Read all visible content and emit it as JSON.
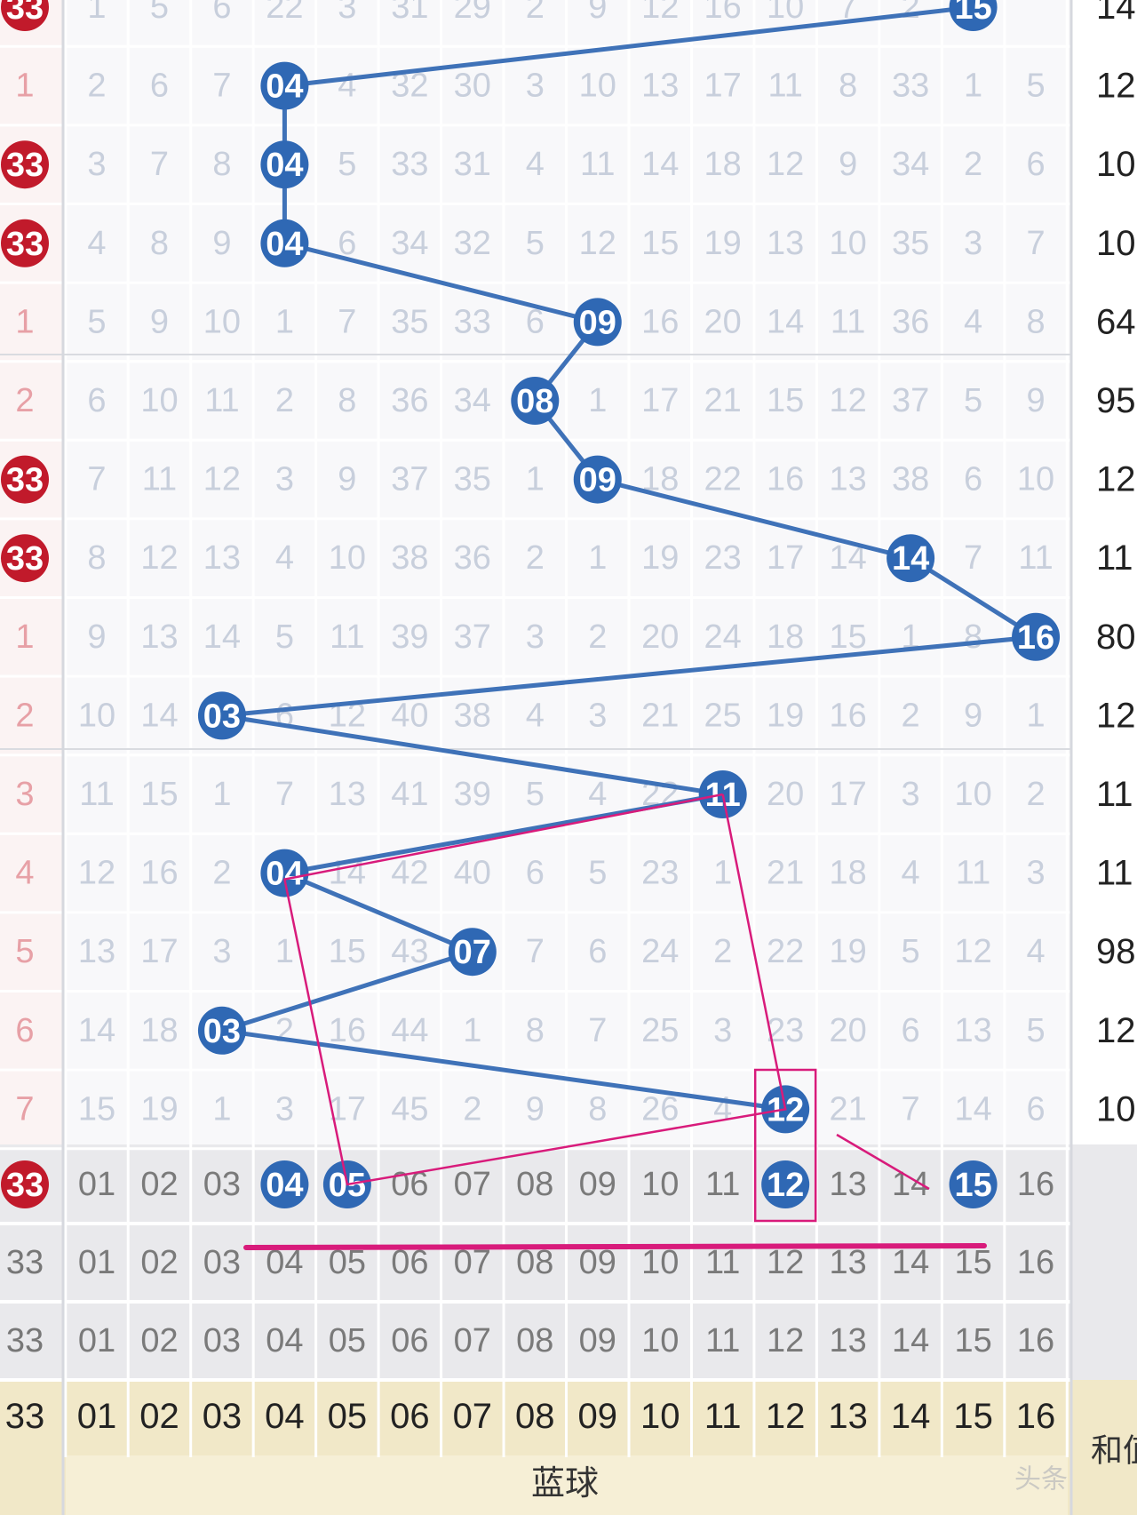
{
  "chart_data": {
    "type": "table",
    "title": "",
    "subtitle": "",
    "colors": {
      "blue_ball": "#2f68b4",
      "red_ball": "#c11a2b",
      "trend_line": "#3f72b8",
      "annotation": "#d81b7b",
      "miss_text": "#c8cfdc",
      "row_number": "#333333"
    },
    "columns": [
      "01",
      "02",
      "03",
      "04",
      "05",
      "06",
      "07",
      "08",
      "09",
      "10",
      "11",
      "12",
      "13",
      "14",
      "15",
      "16"
    ],
    "rows": [
      {
        "left": "33",
        "left_ball": true,
        "miss": [
          "1",
          "5",
          "6",
          "22",
          "3",
          "31",
          "29",
          "2",
          "9",
          "12",
          "16",
          "10",
          "7",
          "2",
          "",
          ""
        ],
        "hit": 15,
        "sum": "14"
      },
      {
        "left": "1",
        "left_ball": false,
        "miss": [
          "2",
          "6",
          "7",
          "",
          "4",
          "32",
          "30",
          "3",
          "10",
          "13",
          "17",
          "11",
          "8",
          "33",
          "1",
          "5"
        ],
        "hit": 4,
        "sum": "12"
      },
      {
        "left": "33",
        "left_ball": true,
        "miss": [
          "3",
          "7",
          "8",
          "",
          "5",
          "33",
          "31",
          "4",
          "11",
          "14",
          "18",
          "12",
          "9",
          "34",
          "2",
          "6"
        ],
        "hit": 4,
        "sum": "10"
      },
      {
        "left": "33",
        "left_ball": true,
        "miss": [
          "4",
          "8",
          "9",
          "",
          "6",
          "34",
          "32",
          "5",
          "12",
          "15",
          "19",
          "13",
          "10",
          "35",
          "3",
          "7"
        ],
        "hit": 4,
        "sum": "10"
      },
      {
        "left": "1",
        "left_ball": false,
        "miss": [
          "5",
          "9",
          "10",
          "1",
          "7",
          "35",
          "33",
          "6",
          "",
          "16",
          "20",
          "14",
          "11",
          "36",
          "4",
          "8"
        ],
        "hit": 9,
        "sum": "64"
      },
      {
        "left": "2",
        "left_ball": false,
        "miss": [
          "6",
          "10",
          "11",
          "2",
          "8",
          "36",
          "34",
          "",
          "1",
          "17",
          "21",
          "15",
          "12",
          "37",
          "5",
          "9"
        ],
        "hit": 8,
        "sum": "95"
      },
      {
        "left": "33",
        "left_ball": true,
        "miss": [
          "7",
          "11",
          "12",
          "3",
          "9",
          "37",
          "35",
          "1",
          "",
          "18",
          "22",
          "16",
          "13",
          "38",
          "6",
          "10"
        ],
        "hit": 9,
        "sum": "12"
      },
      {
        "left": "33",
        "left_ball": true,
        "miss": [
          "8",
          "12",
          "13",
          "4",
          "10",
          "38",
          "36",
          "2",
          "1",
          "19",
          "23",
          "17",
          "14",
          "",
          "7",
          "11"
        ],
        "hit": 14,
        "sum": "11"
      },
      {
        "left": "1",
        "left_ball": false,
        "miss": [
          "9",
          "13",
          "14",
          "5",
          "11",
          "39",
          "37",
          "3",
          "2",
          "20",
          "24",
          "18",
          "15",
          "1",
          "8",
          ""
        ],
        "hit": 16,
        "sum": "80"
      },
      {
        "left": "2",
        "left_ball": false,
        "miss": [
          "10",
          "14",
          "",
          "6",
          "12",
          "40",
          "38",
          "4",
          "3",
          "21",
          "25",
          "19",
          "16",
          "2",
          "9",
          "1"
        ],
        "hit": 3,
        "sum": "12"
      },
      {
        "left": "3",
        "left_ball": false,
        "miss": [
          "11",
          "15",
          "1",
          "7",
          "13",
          "41",
          "39",
          "5",
          "4",
          "22",
          "",
          "20",
          "17",
          "3",
          "10",
          "2"
        ],
        "hit": 11,
        "sum": "11"
      },
      {
        "left": "4",
        "left_ball": false,
        "miss": [
          "12",
          "16",
          "2",
          "",
          "14",
          "42",
          "40",
          "6",
          "5",
          "23",
          "1",
          "21",
          "18",
          "4",
          "11",
          "3"
        ],
        "hit": 4,
        "sum": "11"
      },
      {
        "left": "5",
        "left_ball": false,
        "miss": [
          "13",
          "17",
          "3",
          "1",
          "15",
          "43",
          "",
          "7",
          "6",
          "24",
          "2",
          "22",
          "19",
          "5",
          "12",
          "4"
        ],
        "hit": 7,
        "sum": "98"
      },
      {
        "left": "6",
        "left_ball": false,
        "miss": [
          "14",
          "18",
          "",
          "2",
          "16",
          "44",
          "1",
          "8",
          "7",
          "25",
          "3",
          "23",
          "20",
          "6",
          "13",
          "5"
        ],
        "hit": 3,
        "sum": "12"
      },
      {
        "left": "7",
        "left_ball": false,
        "miss": [
          "15",
          "19",
          "1",
          "3",
          "17",
          "45",
          "2",
          "9",
          "8",
          "26",
          "4",
          "",
          "21",
          "7",
          "14",
          "6"
        ],
        "hit": 12,
        "sum": "10"
      }
    ],
    "forecast_rows": [
      {
        "left": "33",
        "left_ball": true,
        "cells": [
          "01",
          "02",
          "03",
          "04",
          "05",
          "06",
          "07",
          "08",
          "09",
          "10",
          "11",
          "12",
          "13",
          "14",
          "15",
          "16"
        ],
        "selected": [
          4,
          5,
          12,
          15
        ]
      },
      {
        "left": "33",
        "left_ball": false,
        "cells": [
          "01",
          "02",
          "03",
          "04",
          "05",
          "06",
          "07",
          "08",
          "09",
          "10",
          "11",
          "12",
          "13",
          "14",
          "15",
          "16"
        ],
        "selected": []
      },
      {
        "left": "33",
        "left_ball": false,
        "cells": [
          "01",
          "02",
          "03",
          "04",
          "05",
          "06",
          "07",
          "08",
          "09",
          "10",
          "11",
          "12",
          "13",
          "14",
          "15",
          "16"
        ],
        "selected": []
      }
    ],
    "header_row": {
      "left": "33",
      "cells": [
        "01",
        "02",
        "03",
        "04",
        "05",
        "06",
        "07",
        "08",
        "09",
        "10",
        "11",
        "12",
        "13",
        "14",
        "15",
        "16"
      ]
    },
    "footer_label": "蓝球",
    "footer_right": "和值",
    "watermark": "头条"
  }
}
